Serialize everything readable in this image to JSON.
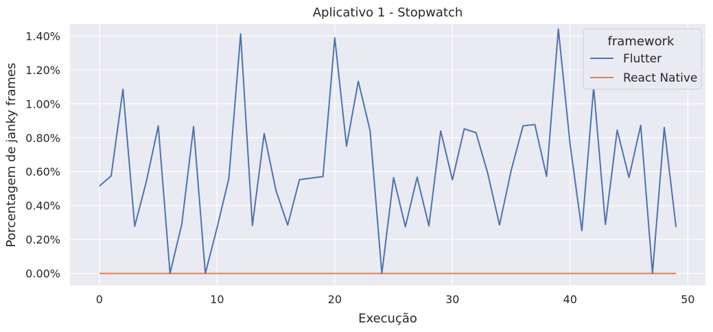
{
  "chart_data": {
    "type": "line",
    "title": "Aplicativo 1 - Stopwatch",
    "xlabel": "Execução",
    "ylabel": "Porcentagem de janky frames",
    "xlim": [
      -2.5,
      51.5
    ],
    "ylim": [
      -0.0007,
      0.0147
    ],
    "x_ticks": [
      0,
      10,
      20,
      30,
      40,
      50
    ],
    "x_tick_labels": [
      "0",
      "10",
      "20",
      "30",
      "40",
      "50"
    ],
    "y_ticks": [
      0.0,
      0.002,
      0.004,
      0.006,
      0.008,
      0.01,
      0.012,
      0.014
    ],
    "y_tick_labels": [
      "0.00%",
      "0.20%",
      "0.40%",
      "0.60%",
      "0.80%",
      "1.00%",
      "1.20%",
      "1.40%"
    ],
    "grid": true,
    "background": "#eaeaf2",
    "legend": {
      "title": "framework",
      "placement": "top-right"
    },
    "x": [
      0,
      1,
      2,
      3,
      4,
      5,
      6,
      7,
      8,
      9,
      10,
      11,
      12,
      13,
      14,
      15,
      16,
      17,
      18,
      19,
      20,
      21,
      22,
      23,
      24,
      25,
      26,
      27,
      28,
      29,
      30,
      31,
      32,
      33,
      34,
      35,
      36,
      37,
      38,
      39,
      40,
      41,
      42,
      43,
      44,
      45,
      46,
      47,
      48,
      49
    ],
    "series": [
      {
        "name": "Flutter",
        "color": "#4c72b0",
        "values": [
          0.00515,
          0.00575,
          0.01085,
          0.00278,
          0.00545,
          0.0087,
          0.0,
          0.0029,
          0.00865,
          0.0,
          0.0027,
          0.0056,
          0.01412,
          0.00283,
          0.00825,
          0.0049,
          0.00285,
          0.00553,
          0.00562,
          0.00571,
          0.01388,
          0.0075,
          0.01133,
          0.00842,
          0.0,
          0.00565,
          0.00275,
          0.00567,
          0.0028,
          0.0084,
          0.00552,
          0.00852,
          0.0083,
          0.0059,
          0.00286,
          0.0061,
          0.0087,
          0.00878,
          0.00572,
          0.0144,
          0.0076,
          0.00252,
          0.01098,
          0.00289,
          0.00845,
          0.00566,
          0.00873,
          0.0,
          0.0086,
          0.00273
        ]
      },
      {
        "name": "React Native",
        "color": "#dd8452",
        "values": [
          0,
          0,
          0,
          0,
          0,
          0,
          0,
          0,
          0,
          0,
          0,
          0,
          0,
          0,
          0,
          0,
          0,
          0,
          0,
          0,
          0,
          0,
          0,
          0,
          0,
          0,
          0,
          0,
          0,
          0,
          0,
          0,
          0,
          0,
          0,
          0,
          0,
          0,
          0,
          0,
          0,
          0,
          0,
          0,
          0,
          0,
          0,
          0,
          0,
          0
        ]
      }
    ]
  }
}
